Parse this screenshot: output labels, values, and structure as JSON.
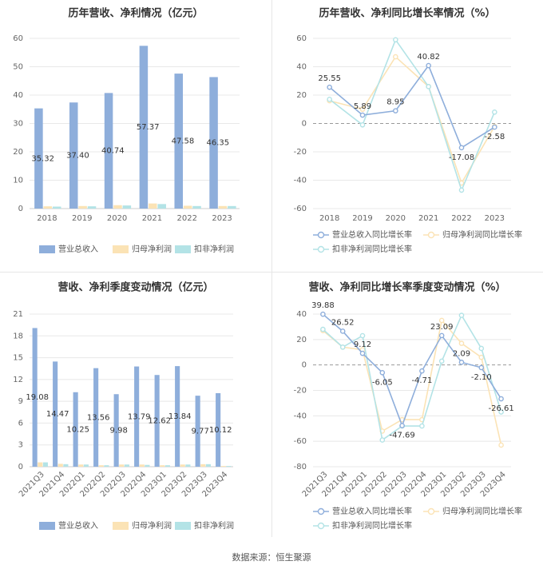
{
  "source": "数据来源：恒生聚源",
  "chart_data": [
    {
      "type": "bar",
      "title": "历年营收、净利情况（亿元）",
      "categories": [
        "2018",
        "2019",
        "2020",
        "2021",
        "2022",
        "2023"
      ],
      "ylim": [
        0,
        60
      ],
      "yticks": [
        0,
        10,
        20,
        30,
        40,
        50,
        60
      ],
      "grid": true,
      "legend_position": "bottom",
      "series": [
        {
          "name": "营业总收入",
          "color": "#8eaedb",
          "values": [
            35.32,
            37.4,
            40.74,
            57.37,
            47.58,
            46.35
          ],
          "labels": [
            "35.32",
            "37.40",
            "40.74",
            "57.37",
            "47.58",
            "46.35"
          ]
        },
        {
          "name": "归母净利润",
          "color": "#fbe3b5",
          "values": [
            0.8,
            0.9,
            1.2,
            1.8,
            1.0,
            0.9
          ]
        },
        {
          "name": "扣非净利润",
          "color": "#b3e3e6",
          "values": [
            0.7,
            0.8,
            1.1,
            1.6,
            0.9,
            0.9
          ]
        }
      ]
    },
    {
      "type": "line",
      "title": "历年营收、净利同比增长率情况（%）",
      "categories": [
        "2018",
        "2019",
        "2020",
        "2021",
        "2022",
        "2023"
      ],
      "ylim": [
        -60,
        60
      ],
      "yticks": [
        -60,
        -40,
        -20,
        0,
        20,
        40,
        60
      ],
      "grid": true,
      "legend_position": "bottom",
      "series": [
        {
          "name": "营业总收入同比增长率",
          "color": "#8eaedb",
          "values": [
            25.55,
            5.89,
            8.95,
            40.82,
            -17.08,
            -2.58
          ],
          "labels": [
            "25.55",
            "5.89",
            "8.95",
            "40.82",
            "-17.08",
            "-2.58"
          ]
        },
        {
          "name": "归母净利润同比增长率",
          "color": "#fbe3b5",
          "values": [
            16,
            10,
            47,
            26,
            -42,
            -2
          ]
        },
        {
          "name": "扣非净利润同比增长率",
          "color": "#b3e3e6",
          "values": [
            17,
            -1,
            59,
            26,
            -47,
            8
          ]
        }
      ]
    },
    {
      "type": "bar",
      "title": "营收、净利季度变动情况（亿元）",
      "categories": [
        "2021Q3",
        "2021Q4",
        "2022Q1",
        "2022Q2",
        "2022Q3",
        "2022Q4",
        "2023Q1",
        "2023Q2",
        "2023Q3",
        "2023Q4"
      ],
      "ylim": [
        0,
        21
      ],
      "yticks": [
        0,
        3,
        6,
        9,
        12,
        15,
        18,
        21
      ],
      "grid": true,
      "legend_position": "bottom",
      "series": [
        {
          "name": "营业总收入",
          "color": "#8eaedb",
          "values": [
            19.08,
            14.47,
            10.25,
            13.56,
            9.98,
            13.79,
            12.62,
            13.84,
            9.77,
            10.12
          ],
          "labels": [
            "19.08",
            "14.47",
            "10.25",
            "13.56",
            "9.98",
            "13.79",
            "12.62",
            "13.84",
            "9.77",
            "10.12"
          ]
        },
        {
          "name": "归母净利润",
          "color": "#fbe3b5",
          "values": [
            0.6,
            0.4,
            0.3,
            0.2,
            0.3,
            0.3,
            0.2,
            0.3,
            0.35,
            0.1
          ]
        },
        {
          "name": "扣非净利润",
          "color": "#b3e3e6",
          "values": [
            0.6,
            0.35,
            0.3,
            0.2,
            0.3,
            0.25,
            0.2,
            0.3,
            0.35,
            0.1
          ]
        }
      ]
    },
    {
      "type": "line",
      "title": "营收、净利同比增长率季度变动情况（%）",
      "categories": [
        "2021Q3",
        "2021Q4",
        "2022Q1",
        "2022Q2",
        "2022Q3",
        "2022Q4",
        "2023Q1",
        "2023Q2",
        "2023Q3",
        "2023Q4"
      ],
      "ylim": [
        -80,
        40
      ],
      "yticks": [
        -80,
        -60,
        -40,
        -20,
        0,
        20,
        40
      ],
      "grid": true,
      "legend_position": "bottom",
      "series": [
        {
          "name": "营业总收入同比增长率",
          "color": "#8eaedb",
          "values": [
            39.88,
            26.52,
            9.12,
            -6.05,
            -47.69,
            -4.71,
            23.09,
            2.09,
            -2.1,
            -26.61
          ],
          "labels": [
            "39.88",
            "26.52",
            "9.12",
            "-6.05",
            "-47.69",
            "-4.71",
            "23.09",
            "2.09",
            "-2.10",
            "-26.61"
          ]
        },
        {
          "name": "归母净利润同比增长率",
          "color": "#fbe3b5",
          "values": [
            27,
            14,
            12,
            -52,
            -43,
            -43,
            35,
            17,
            6,
            -63
          ]
        },
        {
          "name": "扣非净利润同比增长率",
          "color": "#b3e3e6",
          "values": [
            28,
            14,
            23,
            -59,
            -48,
            -48,
            3,
            39,
            13,
            -37
          ]
        }
      ]
    }
  ]
}
